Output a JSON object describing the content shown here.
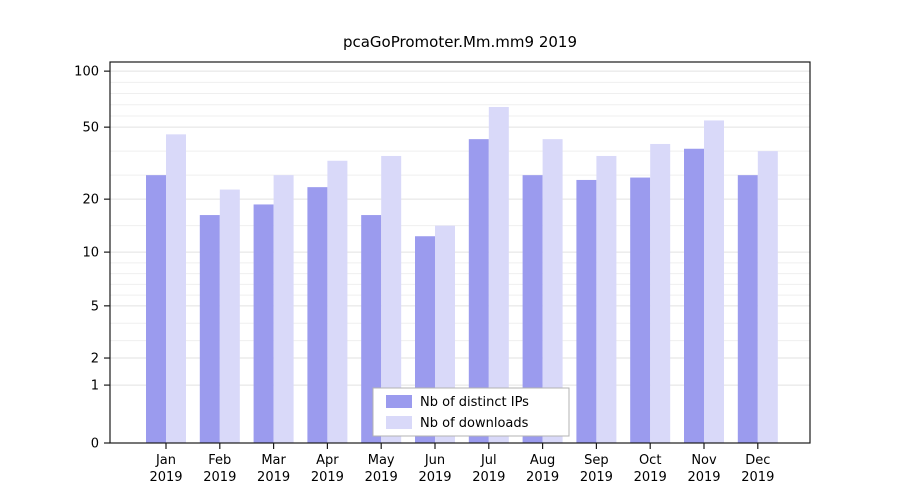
{
  "chart_data": {
    "type": "bar",
    "title": "pcaGoPromoter.Mm.mm9 2019",
    "categories": [
      "Jan",
      "Feb",
      "Mar",
      "Apr",
      "May",
      "Jun",
      "Jul",
      "Aug",
      "Sep",
      "Oct",
      "Nov",
      "Dec"
    ],
    "category_year": "2019",
    "series": [
      {
        "name": "Nb of distinct IPs",
        "color": "#9b9bee",
        "values": [
          30,
          17,
          19,
          25,
          17,
          13,
          45,
          30,
          28,
          29,
          41,
          30
        ]
      },
      {
        "name": "Nb of downloads",
        "color": "#d9d9f9",
        "values": [
          47,
          24,
          30,
          36,
          38,
          15,
          68,
          45,
          38,
          43,
          56,
          40
        ]
      }
    ],
    "xlabel": "",
    "ylabel": "",
    "y_axis": {
      "scale": "log-like",
      "ticks": [
        0,
        1,
        2,
        5,
        10,
        20,
        50,
        100
      ],
      "minor_gridlines": [
        3,
        4,
        6,
        7,
        8,
        9,
        15,
        30,
        40,
        60,
        70,
        80,
        90
      ],
      "ylim": [
        0,
        112
      ]
    },
    "grid": "on",
    "legend_position": "bottom-center",
    "legend_entries": [
      "Nb of distinct IPs",
      "Nb of downloads"
    ]
  },
  "colors": {
    "bar_dark": "#9b9bee",
    "bar_light": "#d9d9f9",
    "grid_major": "#e2e2e2",
    "grid_minor": "#efefef",
    "frame": "#1a1a1a",
    "legend_border": "#b3b3b3",
    "legend_bg": "#ffffff"
  }
}
